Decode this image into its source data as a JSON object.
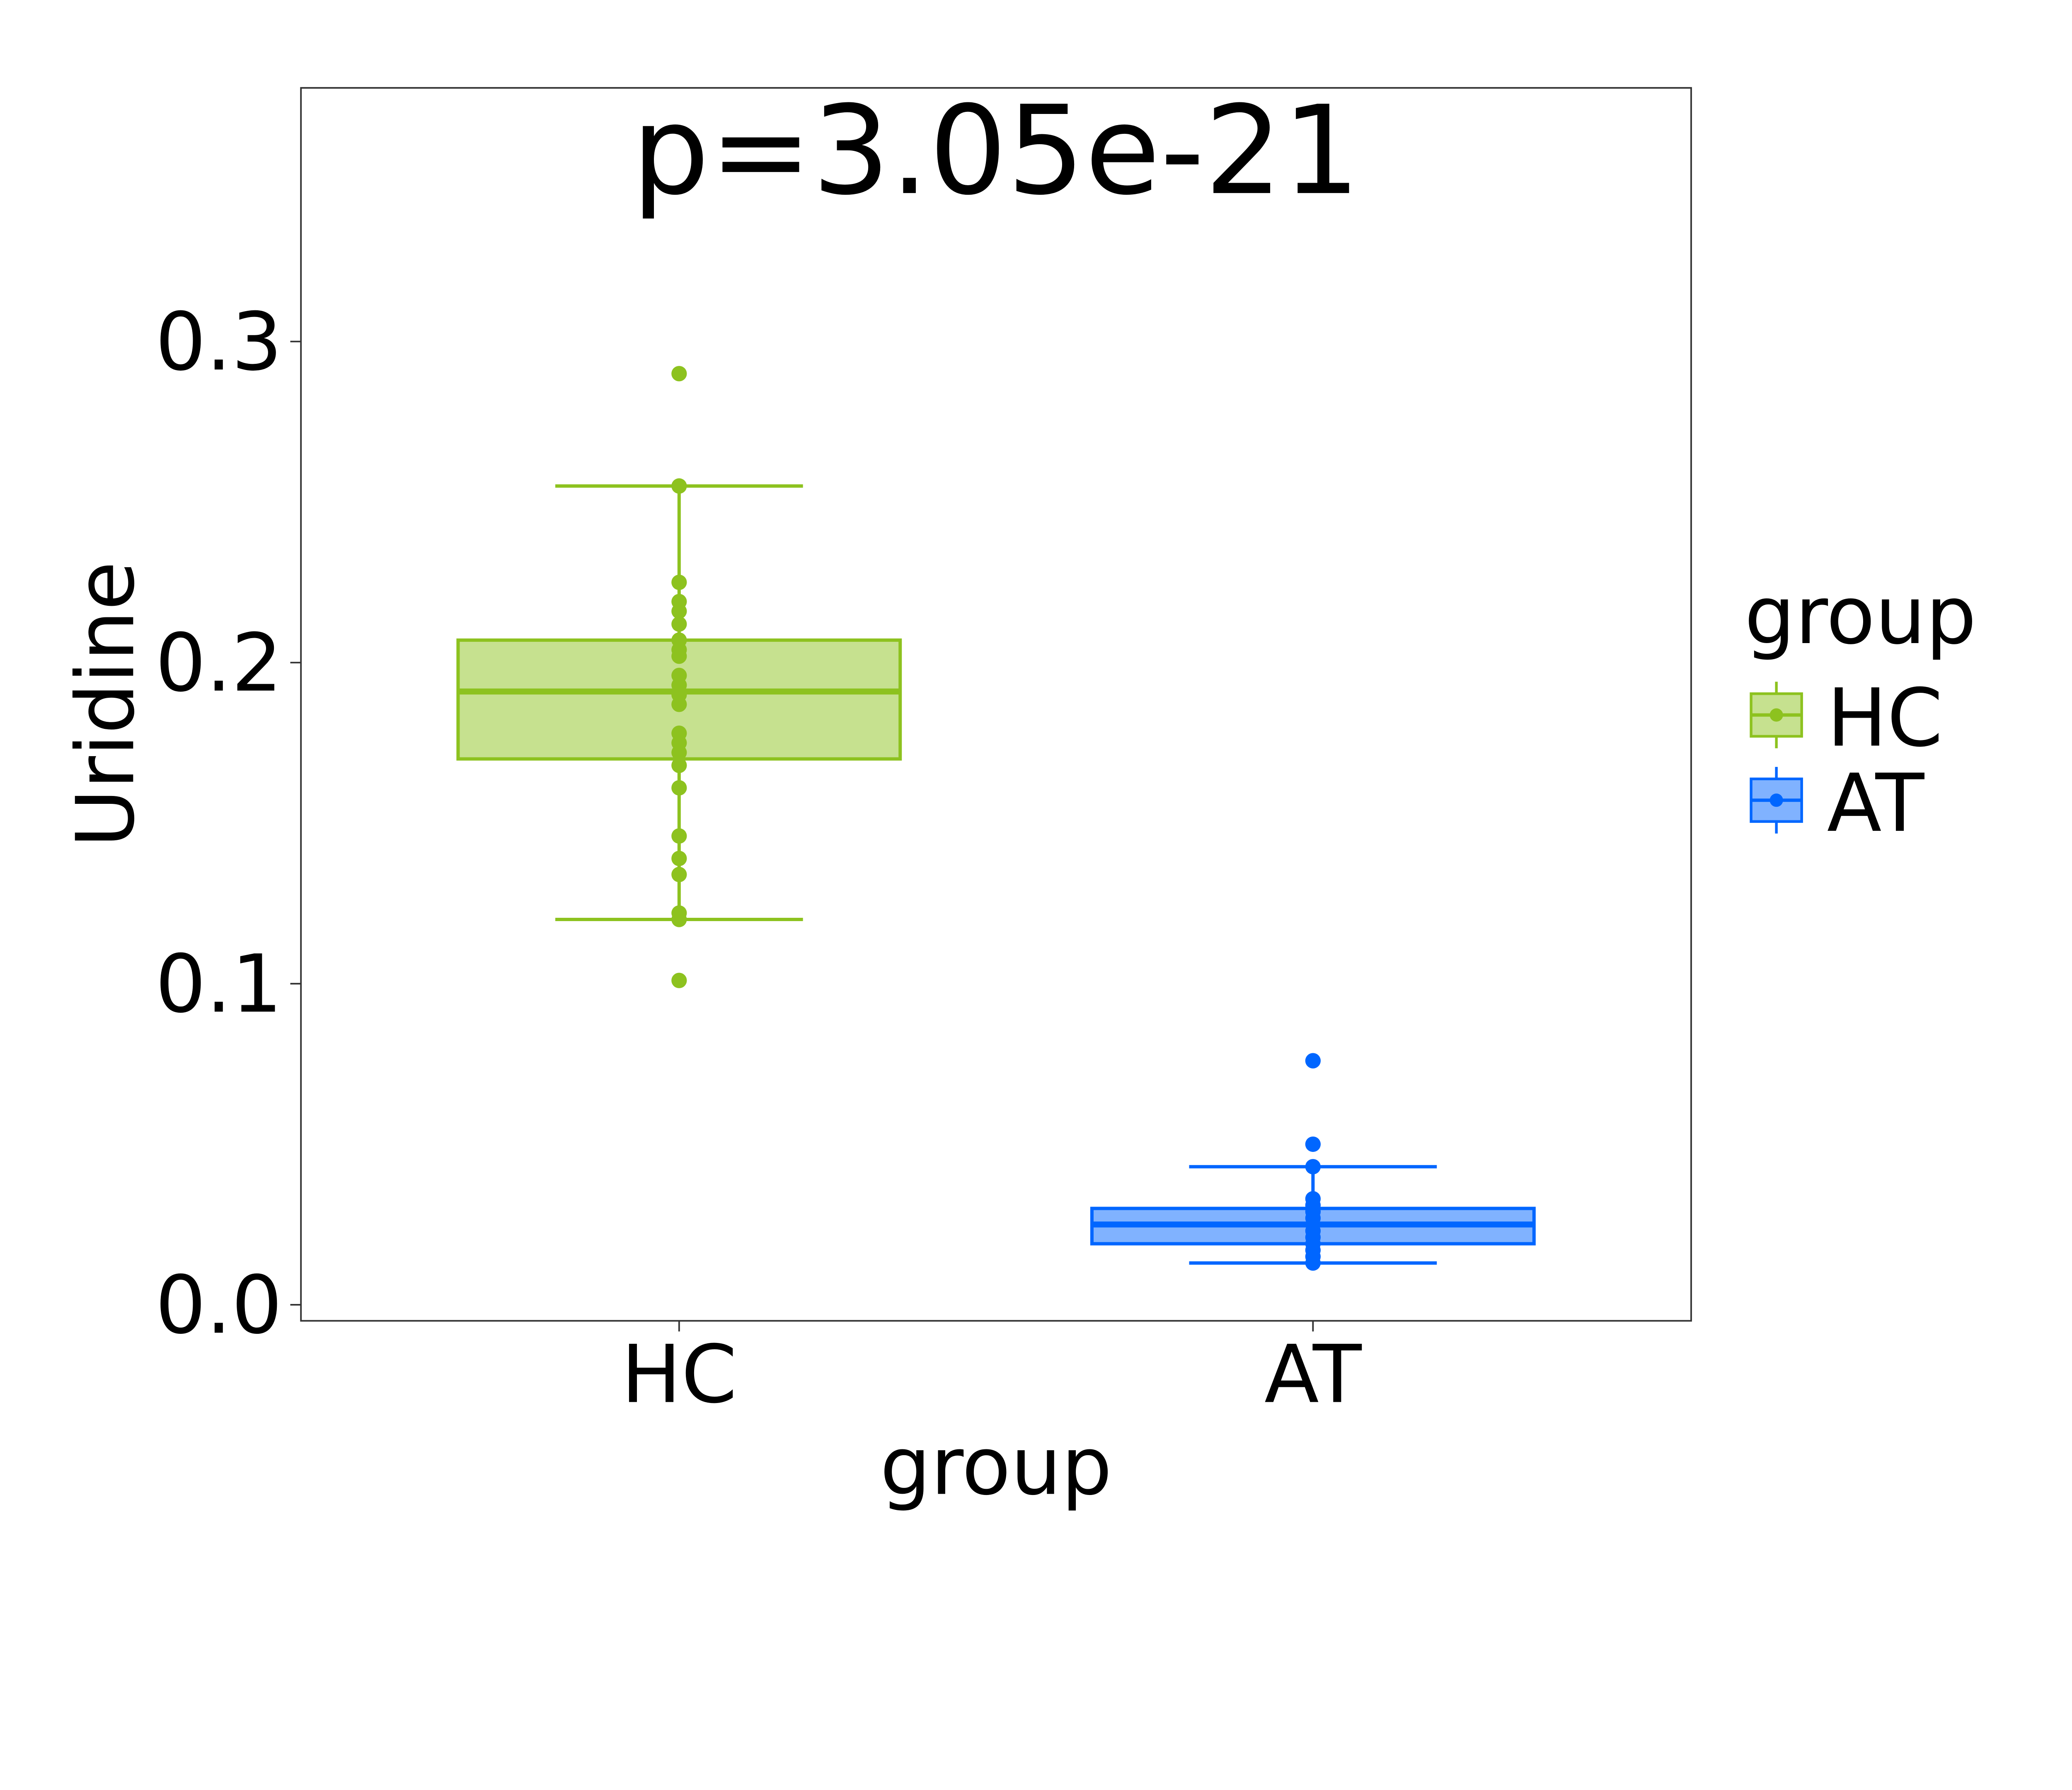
{
  "chart_data": {
    "type": "boxplot",
    "title": "p=3.05e-21",
    "xlabel": "group",
    "ylabel": "Uridine",
    "ylim": [
      -0.005,
      0.379
    ],
    "yticks": [
      0.0,
      0.1,
      0.2,
      0.3
    ],
    "ytick_labels": [
      "0.0",
      "0.1",
      "0.2",
      "0.3"
    ],
    "categories": [
      "HC",
      "AT"
    ],
    "grid": false,
    "legend": {
      "title": "group",
      "position": "right",
      "entries": [
        "HC",
        "AT"
      ]
    },
    "series": [
      {
        "name": "HC",
        "color": "#8DC21F",
        "fill": "#C6E18F",
        "box": {
          "whisker_low": 0.12,
          "q1": 0.17,
          "median": 0.191,
          "q3": 0.207,
          "whisker_high": 0.255
        },
        "points": [
          0.29,
          0.255,
          0.225,
          0.219,
          0.216,
          0.212,
          0.207,
          0.204,
          0.202,
          0.196,
          0.193,
          0.19,
          0.187,
          0.178,
          0.175,
          0.172,
          0.168,
          0.161,
          0.146,
          0.139,
          0.134,
          0.122,
          0.12,
          0.101
        ]
      },
      {
        "name": "AT",
        "color": "#0066FF",
        "fill": "#80B2FF",
        "box": {
          "whisker_low": 0.013,
          "q1": 0.019,
          "median": 0.025,
          "q3": 0.03,
          "whisker_high": 0.043
        },
        "points": [
          0.076,
          0.05,
          0.043,
          0.033,
          0.031,
          0.029,
          0.027,
          0.025,
          0.023,
          0.021,
          0.019,
          0.017,
          0.015,
          0.013
        ]
      }
    ]
  }
}
